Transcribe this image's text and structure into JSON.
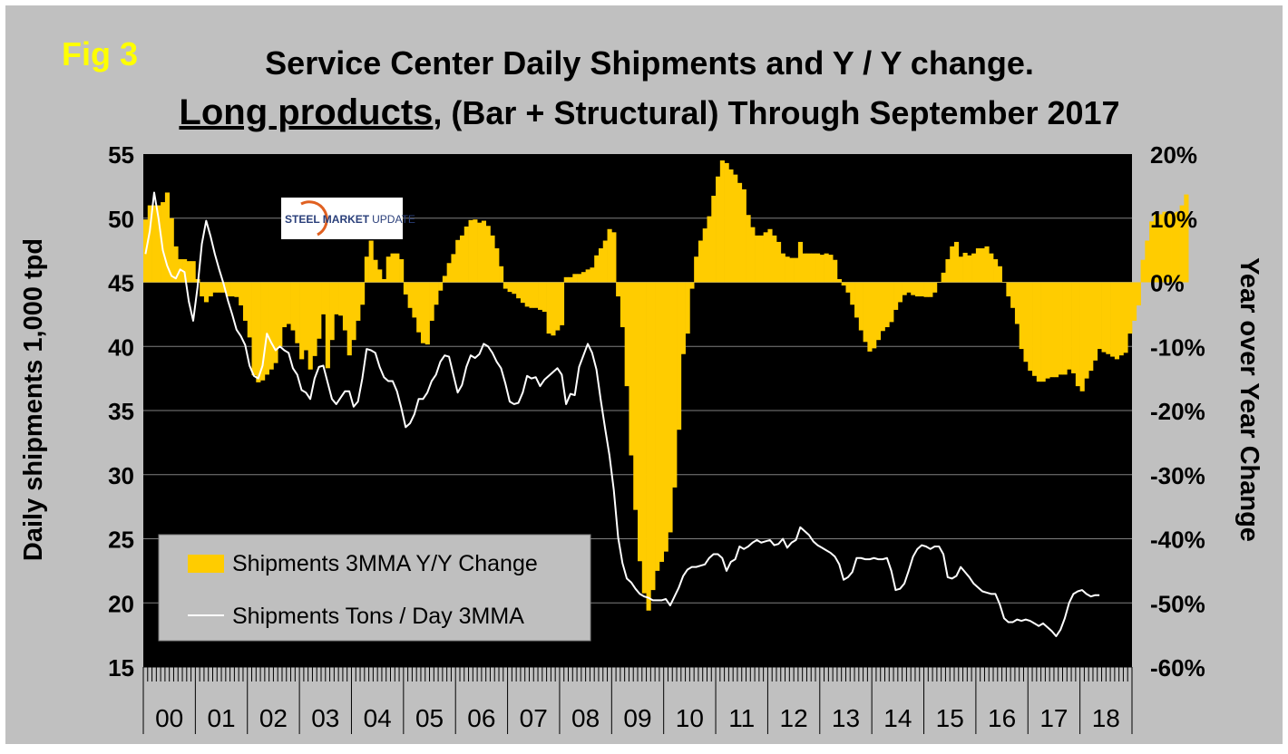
{
  "fig_label": "Fig 3",
  "chart_data": {
    "type": "bar",
    "title_line1": "Service Center Daily Shipments and Y / Y change.",
    "title_line2_underlined": "Long products",
    "title_line2_rest": ", (Bar + Structural) Through September 2017",
    "ylabel_left": "Daily shipments 1,000 tpd",
    "ylabel_right": "Year over Year Change",
    "ylim_left": [
      15,
      55
    ],
    "ylim_right": [
      -60,
      20
    ],
    "yticks_left": [
      "15",
      "20",
      "25",
      "30",
      "35",
      "40",
      "45",
      "50",
      "55"
    ],
    "yticks_right": [
      "-60%",
      "-50%",
      "-40%",
      "-30%",
      "-20%",
      "-10%",
      "0%",
      "10%",
      "20%"
    ],
    "x_categories": [
      "00",
      "01",
      "02",
      "03",
      "04",
      "05",
      "06",
      "07",
      "08",
      "09",
      "10",
      "11",
      "12",
      "13",
      "14",
      "15",
      "16",
      "17",
      "18"
    ],
    "x_start_year": 2000,
    "months_per_year": 12,
    "legend": {
      "bar_series": "Shipments 3MMA Y/Y Change",
      "line_series": "Shipments Tons / Day 3MMA",
      "placement": "bottom-left"
    },
    "logo_text_bold": "STEEL MARKET",
    "logo_text_light": "UPDATE",
    "series": [
      {
        "name": "Shipments 3MMA Y/Y Change",
        "kind": "bar",
        "axis": "right",
        "unit": "%",
        "start": "2000-01",
        "values": [
          9.8,
          12,
          12,
          12,
          12.5,
          14,
          10,
          5.6,
          3.6,
          3.6,
          3.3,
          3.3,
          0.5,
          -2.2,
          -3.1,
          -2.2,
          -1.6,
          -1.6,
          -1.6,
          -2.2,
          -2.2,
          -2.3,
          -3.6,
          -6,
          -8.6,
          -14.5,
          -15.6,
          -15.3,
          -14.4,
          -13.6,
          -12.6,
          -10,
          -7,
          -6.5,
          -7.5,
          -9.5,
          -12,
          -10.6,
          -13.6,
          -11.5,
          -8.8,
          -5,
          -13.4,
          -9,
          -5,
          -5.2,
          -7.5,
          -11.4,
          -9,
          -6,
          -3.5,
          4,
          6.5,
          3.5,
          2,
          0.5,
          4,
          4.5,
          4.5,
          3.6,
          -1.9,
          -4,
          -5.5,
          -7.8,
          -9.5,
          -9.7,
          -6,
          -3.5,
          -1.3,
          1,
          3,
          4.4,
          6.6,
          7.3,
          8.7,
          9.7,
          9.8,
          9.3,
          9.6,
          8.8,
          7.3,
          5.3,
          2.5,
          -1,
          -1.5,
          -1.8,
          -2.5,
          -3.2,
          -3.8,
          -4,
          -4,
          -4.3,
          -4.6,
          -8,
          -8.3,
          -7.5,
          -6.7,
          0.8,
          0.8,
          1.3,
          1.3,
          1.6,
          2,
          2.3,
          4.2,
          5.3,
          6.5,
          8.3,
          7.8,
          -2.2,
          -7,
          -16.2,
          -27,
          -35.5,
          -43.5,
          -48.5,
          -51.2,
          -48,
          -45,
          -43.6,
          -42,
          -39,
          -32,
          -23,
          -11.2,
          -8,
          -1,
          4,
          6.5,
          8.4,
          10.3,
          13.5,
          16.5,
          19,
          18.6,
          17.6,
          16.8,
          15.5,
          14.5,
          10.5,
          8.6,
          7.3,
          7.3,
          7.8,
          8.3,
          7.3,
          6.3,
          4.5,
          4,
          3.8,
          3.8,
          6.3,
          4.5,
          4.5,
          4.5,
          4.5,
          4.3,
          4.5,
          4.3,
          3.5,
          0.5,
          -0.5,
          -1.6,
          -3.5,
          -5.5,
          -7.5,
          -9.3,
          -10.8,
          -10.3,
          -9,
          -7.6,
          -7,
          -6.2,
          -4.3,
          -3.1,
          -2,
          -1.6,
          -2,
          -2.2,
          -2.2,
          -2.3,
          -2.3,
          -1.6,
          0,
          1.5,
          3.6,
          5.6,
          6.3,
          4,
          4.6,
          4.2,
          4.5,
          5.3,
          5.3,
          5.6,
          4.5,
          3.6,
          2.5,
          0,
          -2.2,
          -4,
          -6.5,
          -10.4,
          -12.4,
          -13.8,
          -14.6,
          -15.5,
          -15.5,
          -15,
          -14.8,
          -14.8,
          -14.4,
          -14.4,
          -13.6,
          -14.2,
          -16.2,
          -17,
          -15,
          -13.8,
          -12.2,
          -10.4,
          -10.9,
          -11.2,
          -11.6,
          -12,
          -11.4,
          -11,
          -8,
          -6,
          -3.6,
          3.5,
          6.5,
          9.5,
          10.6,
          10.6,
          11,
          11,
          10.8,
          11,
          12,
          13.7
        ]
      },
      {
        "name": "Shipments Tons / Day 3MMA",
        "kind": "line",
        "axis": "left",
        "unit": "1,000 tpd",
        "start": "2000-01",
        "values": [
          47.2,
          49,
          52,
          50,
          47.5,
          46.3,
          45.5,
          45.3,
          46,
          45.8,
          43.5,
          42,
          44.6,
          48,
          49.8,
          48.6,
          47.2,
          46,
          44.9,
          43.6,
          42.5,
          41.3,
          40.8,
          40.1,
          38.5,
          37.7,
          37.5,
          38.5,
          41,
          40.3,
          39.7,
          40,
          39.7,
          39.5,
          38.3,
          37.8,
          36.6,
          36.4,
          35.9,
          37.5,
          38.4,
          38.5,
          37.2,
          35.9,
          35.5,
          36,
          36.5,
          36.5,
          35.3,
          35.7,
          37.5,
          39.8,
          39.7,
          39.5,
          38.4,
          37.6,
          37.3,
          37.3,
          36.5,
          35.2,
          33.7,
          34,
          34.7,
          35.9,
          35.9,
          36.4,
          37.3,
          37.8,
          38.8,
          39.3,
          39.2,
          37.8,
          36.4,
          37,
          38.4,
          39.3,
          39.1,
          39.4,
          40.2,
          40,
          39.5,
          38.8,
          38.3,
          37.1,
          35.7,
          35.5,
          35.6,
          36.4,
          37.7,
          37.5,
          37.6,
          36.9,
          37.4,
          37.7,
          38,
          38.3,
          37.8,
          35.5,
          36.3,
          36.2,
          38.4,
          39.3,
          40.2,
          39.5,
          38.2,
          35.8,
          33.6,
          31.5,
          28.8,
          25.1,
          23.1,
          21.9,
          21.6,
          21.1,
          20.7,
          20.5,
          20.4,
          20.2,
          20.2,
          20.2,
          20.3,
          19.8,
          20.5,
          21.2,
          22.1,
          22.6,
          22.8,
          22.8,
          22.9,
          23,
          23.5,
          23.8,
          23.8,
          23.5,
          22.5,
          23.2,
          23.4,
          24.4,
          24.2,
          24.4,
          24.7,
          24.9,
          24.7,
          24.8,
          24.9,
          24.5,
          24.6,
          25,
          24.3,
          24.7,
          24.9,
          25.9,
          25.6,
          25.3,
          24.8,
          24.5,
          24.3,
          24.1,
          23.9,
          23.6,
          23,
          21.8,
          22,
          22.4,
          23.5,
          23.5,
          23.4,
          23.4,
          23.5,
          23.4,
          23.4,
          23.5,
          22.5,
          21,
          21.1,
          21.5,
          22.5,
          23.6,
          24.2,
          24.5,
          24.4,
          24.2,
          24.4,
          24.4,
          23.8,
          22,
          21.9,
          22.1,
          22.8,
          22.4,
          22,
          21.5,
          21.2,
          20.9,
          20.8,
          20.7,
          20.7,
          19.9,
          18.8,
          18.5,
          18.5,
          18.7,
          18.6,
          18.7,
          18.6,
          18.4,
          18.2,
          18.4,
          18.1,
          17.8,
          17.4,
          17.9,
          18.8,
          20,
          20.7,
          20.9,
          21,
          20.7,
          20.5,
          20.6,
          20.6
        ]
      }
    ]
  }
}
